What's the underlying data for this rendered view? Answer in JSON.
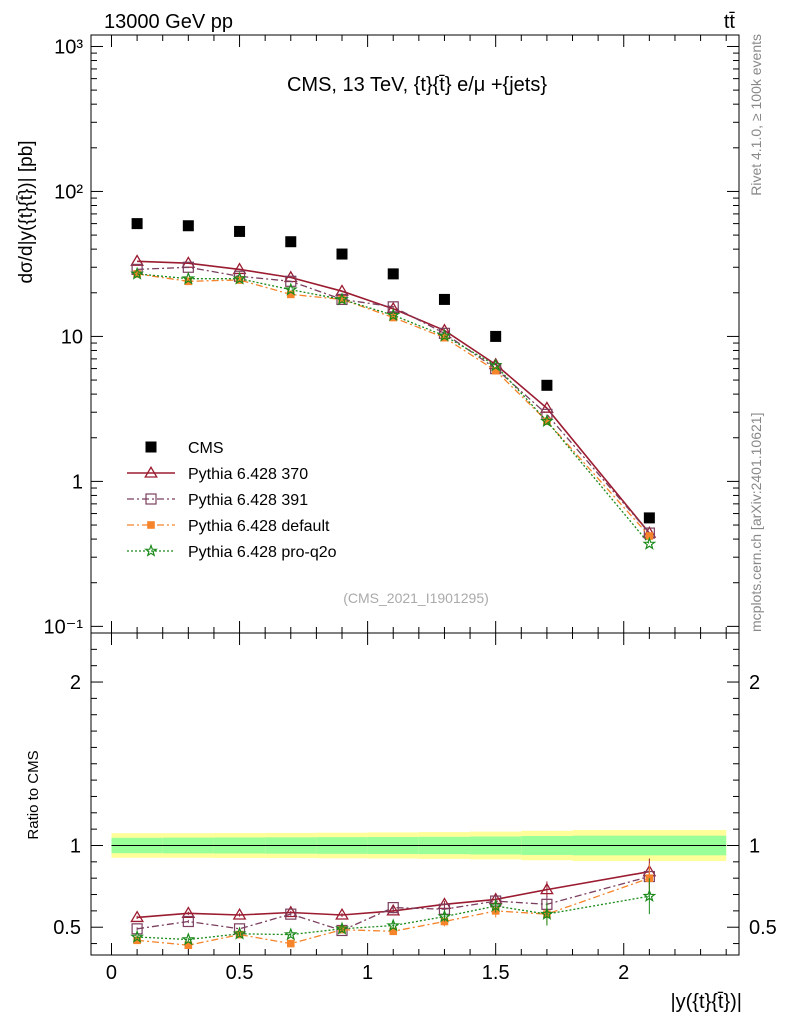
{
  "header": {
    "left": "13000 GeV pp",
    "right": "tt̄"
  },
  "side_labels": {
    "rivet": "Rivet 4.1.0, ≥ 100k events",
    "mcplots": "mcplots.cern.ch [arXiv:2401.10621]"
  },
  "chart_data": {
    "type": "scatter",
    "title": "CMS, 13 TeV, {t}{t̄} e/μ +{jets}",
    "watermark": "(CMS_2021_I1901295)",
    "xlabel": "|y({t}{t̄})|",
    "ylabel": "dσ/d|y({t}{t̄})| [pb]",
    "yscale": "log",
    "ylim": [
      0.09,
      1200
    ],
    "xlim": [
      -0.08,
      2.45
    ],
    "x_ticks": [
      "0",
      "0.5",
      "1",
      "1.5",
      "2"
    ],
    "y_ticks": [
      "10⁻¹",
      "1",
      "10",
      "10²",
      "10³"
    ],
    "x": [
      0.1,
      0.3,
      0.5,
      0.7,
      0.9,
      1.1,
      1.3,
      1.5,
      1.7,
      2.1
    ],
    "series": [
      {
        "name": "CMS",
        "color": "#000000",
        "marker": "square",
        "values": [
          60,
          58,
          53,
          45,
          37,
          27,
          18,
          10,
          4.6,
          0.56
        ]
      },
      {
        "name": "Pythia 6.428 370",
        "color": "#9b1b30",
        "marker": "triangle-open",
        "line": "solid",
        "values": [
          33,
          32,
          29,
          25.5,
          20.5,
          15.5,
          11,
          6.4,
          3.2,
          0.44
        ]
      },
      {
        "name": "Pythia 6.428 391",
        "color": "#7b3f5f",
        "marker": "square-open",
        "line": "dashdot",
        "values": [
          29,
          30,
          26,
          24,
          18,
          16,
          10.5,
          6.0,
          2.9,
          0.44
        ]
      },
      {
        "name": "Pythia 6.428 default",
        "color": "#f5842a",
        "marker": "square",
        "line": "dashdot",
        "values": [
          27,
          24,
          24.5,
          19.5,
          18,
          13.5,
          9.8,
          5.8,
          2.6,
          0.42
        ]
      },
      {
        "name": "Pythia 6.428 pro-q2o",
        "color": "#1a8a1a",
        "marker": "star",
        "line": "dotted",
        "values": [
          27,
          25,
          25,
          21,
          18,
          14,
          10.1,
          6.3,
          2.6,
          0.37
        ]
      }
    ],
    "ratio": {
      "ylabel": "Ratio to CMS",
      "ylim": [
        0.33,
        2.3
      ],
      "y_ticks": [
        "0.5",
        "1",
        "2"
      ],
      "band_bins": [
        0,
        0.2,
        0.4,
        0.6,
        0.8,
        1.0,
        1.2,
        1.4,
        1.6,
        1.8,
        2.4
      ],
      "band_inner": [
        0.047,
        0.048,
        0.049,
        0.05,
        0.051,
        0.052,
        0.053,
        0.055,
        0.058,
        0.06
      ],
      "band_outer": [
        0.075,
        0.075,
        0.076,
        0.077,
        0.078,
        0.08,
        0.082,
        0.085,
        0.09,
        0.095
      ],
      "series": [
        {
          "name": "Pythia 6.428 370",
          "values": [
            0.56,
            0.585,
            0.575,
            0.59,
            0.575,
            0.6,
            0.64,
            0.67,
            0.73,
            0.84
          ],
          "errors": [
            0.01,
            0.01,
            0.01,
            0.01,
            0.012,
            0.015,
            0.02,
            0.03,
            0.05,
            0.08
          ]
        },
        {
          "name": "Pythia 6.428 391",
          "values": [
            0.49,
            0.535,
            0.49,
            0.58,
            0.48,
            0.62,
            0.61,
            0.66,
            0.64,
            0.81
          ],
          "errors": [
            0.01,
            0.01,
            0.01,
            0.01,
            0.012,
            0.015,
            0.02,
            0.03,
            0.05,
            0.08
          ]
        },
        {
          "name": "Pythia 6.428 default",
          "values": [
            0.42,
            0.39,
            0.455,
            0.4,
            0.485,
            0.475,
            0.535,
            0.6,
            0.58,
            0.8
          ],
          "errors": [
            0.01,
            0.01,
            0.012,
            0.012,
            0.015,
            0.02,
            0.03,
            0.04,
            0.06,
            0.09
          ]
        },
        {
          "name": "Pythia 6.428 pro-q2o",
          "values": [
            0.44,
            0.425,
            0.46,
            0.455,
            0.49,
            0.51,
            0.565,
            0.63,
            0.58,
            0.69
          ],
          "errors": [
            0.01,
            0.01,
            0.012,
            0.012,
            0.015,
            0.02,
            0.03,
            0.04,
            0.07,
            0.11
          ]
        }
      ]
    }
  }
}
